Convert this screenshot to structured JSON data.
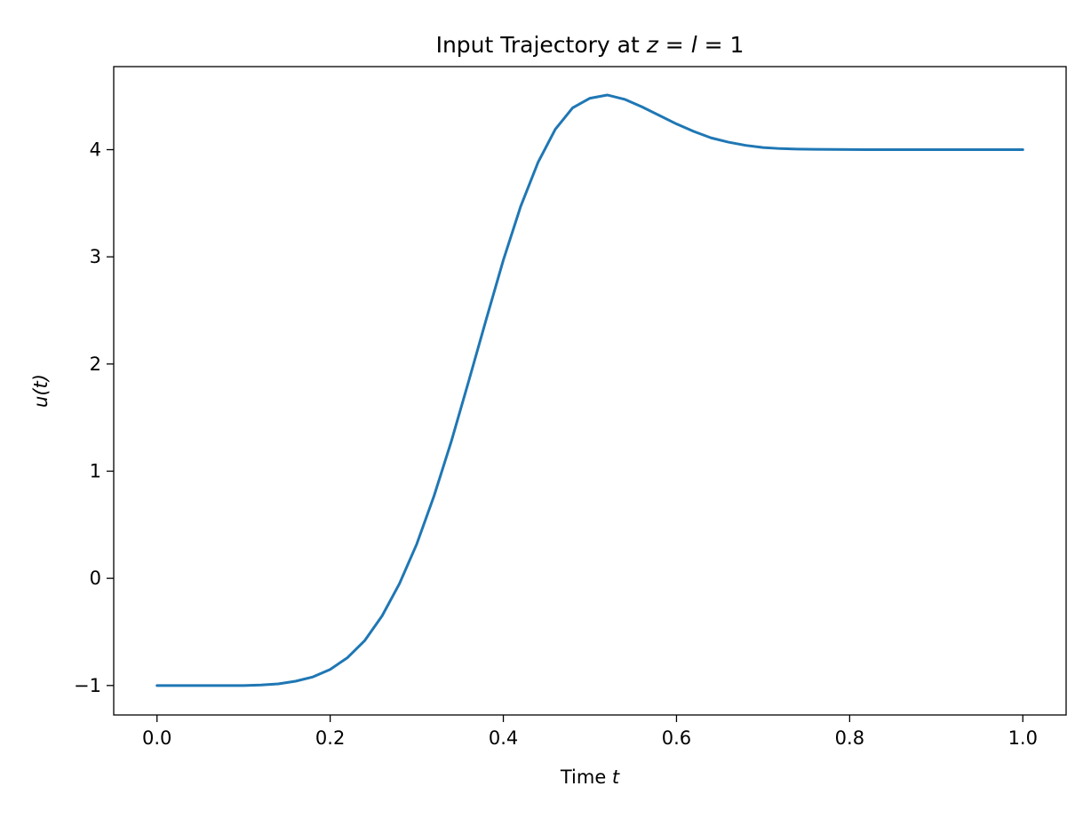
{
  "chart_data": {
    "type": "line",
    "title_parts": {
      "prefix": "Input Trajectory at ",
      "var_z": "z",
      "eq1": " = ",
      "var_l": "l",
      "eq2": " = 1"
    },
    "xlabel_parts": {
      "text": "Time ",
      "var": "t"
    },
    "ylabel": "u(t)",
    "xlim": [
      -0.05,
      1.05
    ],
    "ylim": [
      -1.275,
      4.775
    ],
    "xticks": [
      0.0,
      0.2,
      0.4,
      0.6,
      0.8,
      1.0
    ],
    "xtick_labels": [
      "0.0",
      "0.2",
      "0.4",
      "0.6",
      "0.8",
      "1.0"
    ],
    "yticks": [
      -1,
      0,
      1,
      2,
      3,
      4
    ],
    "ytick_labels": [
      "−1",
      "0",
      "1",
      "2",
      "3",
      "4"
    ],
    "grid": false,
    "legend": "none",
    "series": [
      {
        "color": "#1f77b4",
        "x": [
          0.0,
          0.02,
          0.04,
          0.06,
          0.08,
          0.1,
          0.12,
          0.14,
          0.16,
          0.18,
          0.2,
          0.22,
          0.24,
          0.26,
          0.28,
          0.3,
          0.32,
          0.34,
          0.36,
          0.38,
          0.4,
          0.42,
          0.44,
          0.46,
          0.48,
          0.5,
          0.52,
          0.54,
          0.56,
          0.58,
          0.6,
          0.62,
          0.64,
          0.66,
          0.68,
          0.7,
          0.72,
          0.74,
          0.76,
          0.78,
          0.8,
          0.82,
          0.84,
          0.86,
          0.88,
          0.9,
          0.92,
          0.94,
          0.96,
          0.98,
          1.0
        ],
        "y": [
          -1.0,
          -1.0,
          -1.0,
          -1.0,
          -1.0,
          -1.0,
          -0.995,
          -0.985,
          -0.96,
          -0.92,
          -0.85,
          -0.74,
          -0.58,
          -0.35,
          -0.05,
          0.32,
          0.77,
          1.28,
          1.84,
          2.41,
          2.97,
          3.47,
          3.88,
          4.19,
          4.39,
          4.48,
          4.51,
          4.47,
          4.4,
          4.32,
          4.24,
          4.17,
          4.11,
          4.07,
          4.04,
          4.02,
          4.01,
          4.005,
          4.003,
          4.002,
          4.001,
          4.0,
          4.0,
          4.0,
          4.0,
          4.0,
          4.0,
          4.0,
          4.0,
          4.0,
          4.0
        ]
      }
    ]
  }
}
